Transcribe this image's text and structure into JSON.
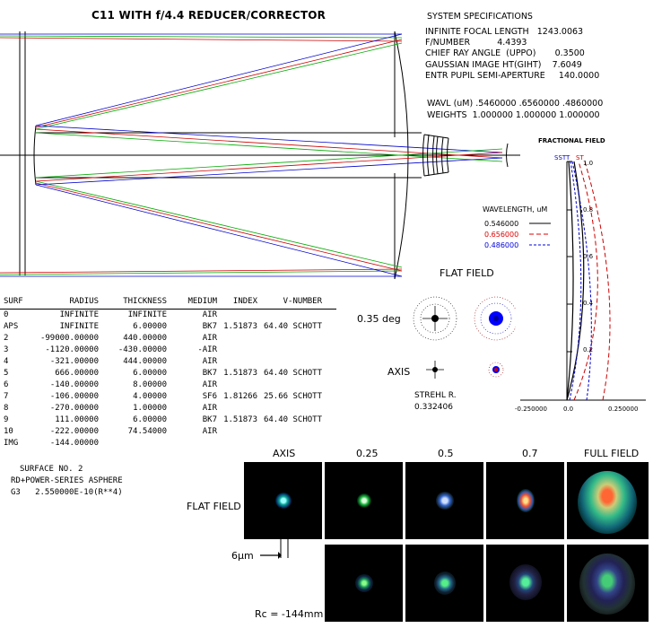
{
  "title": "C11 WITH f/4.4 REDUCER/CORRECTOR",
  "system_specifications": {
    "heading": "SYSTEM SPECIFICATIONS",
    "lines": [
      "INFINITE FOCAL LENGTH   1243.0063",
      "F/NUMBER          4.4393",
      "CHIEF RAY ANGLE  (UPPO)       0.3500",
      "GAUSSIAN IMAGE HT(GIHT)    7.6049",
      "ENTR PUPIL SEMI-APERTURE     140.0000"
    ],
    "wavl": "WAVL (uM) .5460000 .6560000 .4860000",
    "weights": "WEIGHTS  1.000000 1.000000 1.000000"
  },
  "field_plot": {
    "title": "FRACTIONAL FIELD",
    "legend_labels": [
      "SSTT",
      "ST"
    ],
    "y_ticks": [
      "1.0",
      "0.8",
      "0.6",
      "0.4",
      "0.2"
    ],
    "x_ticks": [
      "-0.250000",
      "0.0",
      "0.250000"
    ],
    "wavelength_title": "WAVELENGTH, uM",
    "wavelengths": [
      {
        "label": "0.546000",
        "color": "#000000"
      },
      {
        "label": "0.656000",
        "color": "#e00000"
      },
      {
        "label": "0.486000",
        "color": "#0000e0"
      }
    ]
  },
  "spot_diagram": {
    "flat_field_label": "FLAT FIELD",
    "field_0_35_label": "0.35 deg",
    "axis_label": "AXIS",
    "strehl_label": "STREHL R.",
    "strehl_value": "0.332406"
  },
  "prescription": {
    "header": [
      "SURF",
      "RADIUS",
      "THICKNESS",
      "MEDIUM",
      "INDEX",
      "V-NUMBER"
    ],
    "rows": [
      [
        "0",
        "INFINITE",
        "INFINITE",
        "AIR",
        "",
        ""
      ],
      [
        "APS",
        "INFINITE",
        "6.00000",
        "BK7",
        "1.51873",
        "64.40 SCHOTT"
      ],
      [
        "2",
        "-99000.00000",
        "440.00000",
        "AIR",
        "",
        ""
      ],
      [
        "3",
        "-1120.00000",
        "-430.00000",
        "-AIR",
        "",
        ""
      ],
      [
        "4",
        "-321.00000",
        "444.00000",
        "AIR",
        "",
        ""
      ],
      [
        "5",
        "666.00000",
        "6.00000",
        "BK7",
        "1.51873",
        "64.40 SCHOTT"
      ],
      [
        "6",
        "-140.00000",
        "8.00000",
        "AIR",
        "",
        ""
      ],
      [
        "7",
        "-106.00000",
        "4.00000",
        "SF6",
        "1.81266",
        "25.66 SCHOTT"
      ],
      [
        "8",
        "-270.00000",
        "1.00000",
        "AIR",
        "",
        ""
      ],
      [
        "9",
        "111.00000",
        "6.00000",
        "BK7",
        "1.51873",
        "64.40 SCHOTT"
      ],
      [
        "10",
        "-222.00000",
        "74.54000",
        "AIR",
        "",
        ""
      ],
      [
        "IMG",
        "-144.00000",
        "",
        "",
        "",
        ""
      ]
    ]
  },
  "surface_note": {
    "line1": "SURFACE NO. 2",
    "line2": "RD+POWER-SERIES ASPHERE",
    "line3": "G3   2.550000E-10(R**4)"
  },
  "psf_grid": {
    "columns": [
      "AXIS",
      "0.25",
      "0.5",
      "0.7",
      "FULL FIELD"
    ],
    "row1_label": "FLAT FIELD",
    "scale_label": "6μm",
    "rc_label": "Rc = -144mm"
  }
}
